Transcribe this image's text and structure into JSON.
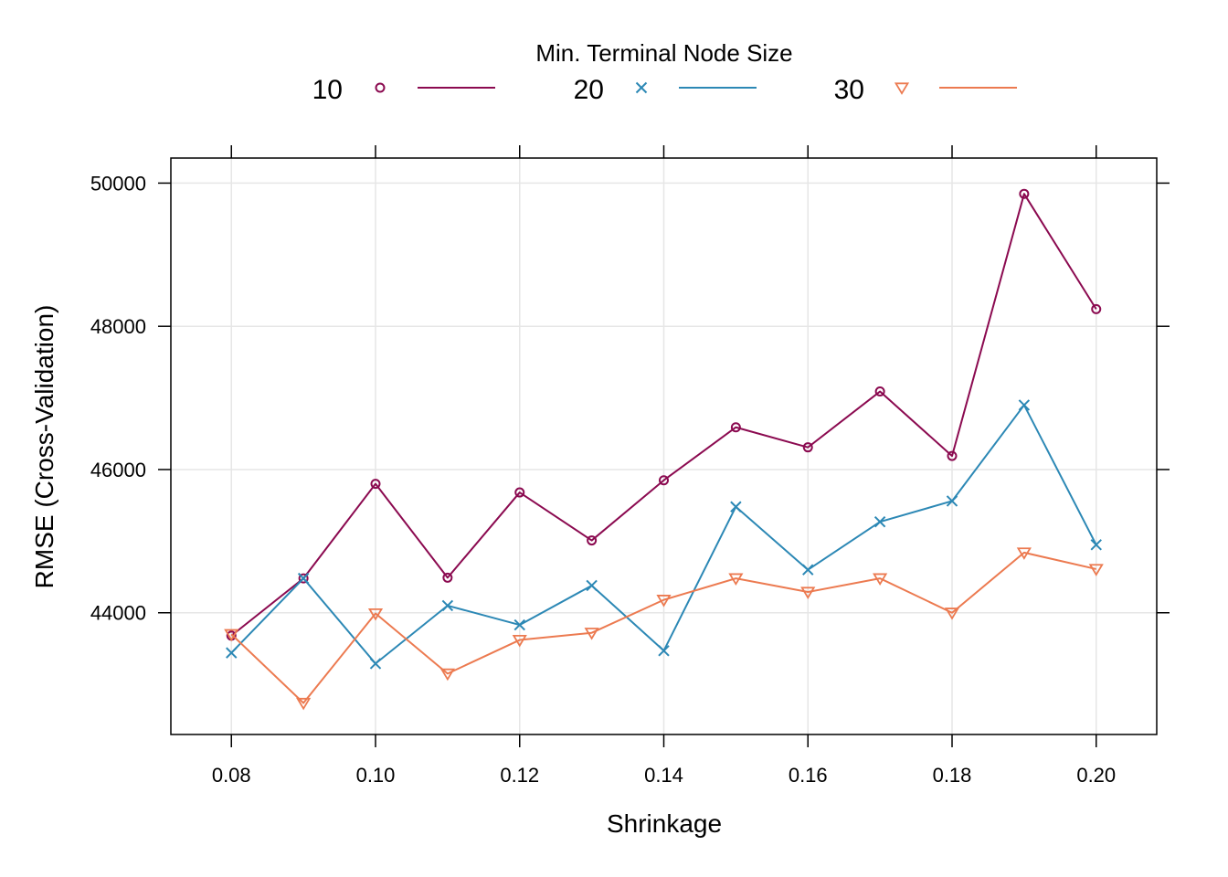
{
  "chart_data": {
    "type": "line",
    "xlabel": "Shrinkage",
    "ylabel": "RMSE (Cross-Validation)",
    "legend_title": "Min. Terminal Node Size",
    "legend_position": "top",
    "grid": true,
    "x": [
      0.08,
      0.09,
      0.1,
      0.11,
      0.12,
      0.13,
      0.14,
      0.15,
      0.16,
      0.17,
      0.18,
      0.19,
      0.2
    ],
    "xlim": [
      0.0716,
      0.2084
    ],
    "ylim": [
      42300,
      50350
    ],
    "xticks": [
      0.08,
      0.1,
      0.12,
      0.14,
      0.16,
      0.18,
      0.2
    ],
    "xtick_labels": [
      "0.08",
      "0.10",
      "0.12",
      "0.14",
      "0.16",
      "0.18",
      "0.20"
    ],
    "yticks": [
      44000,
      46000,
      48000,
      50000
    ],
    "ytick_labels": [
      "44000",
      "46000",
      "48000",
      "50000"
    ],
    "series": [
      {
        "name": "10",
        "color": "#8B0A50",
        "marker": "circle",
        "values": [
          43680,
          44480,
          45800,
          44490,
          45680,
          45010,
          45850,
          46590,
          46310,
          47090,
          46190,
          49850,
          48240
        ]
      },
      {
        "name": "20",
        "color": "#2C88B5",
        "marker": "cross",
        "values": [
          43440,
          44480,
          43290,
          44100,
          43830,
          44380,
          43470,
          45480,
          44600,
          45270,
          45560,
          46900,
          44950
        ]
      },
      {
        "name": "30",
        "color": "#EC7A50",
        "marker": "triangle-down",
        "values": [
          43700,
          42740,
          43990,
          43150,
          43620,
          43720,
          44180,
          44480,
          44290,
          44480,
          44000,
          44840,
          44610
        ]
      }
    ]
  }
}
